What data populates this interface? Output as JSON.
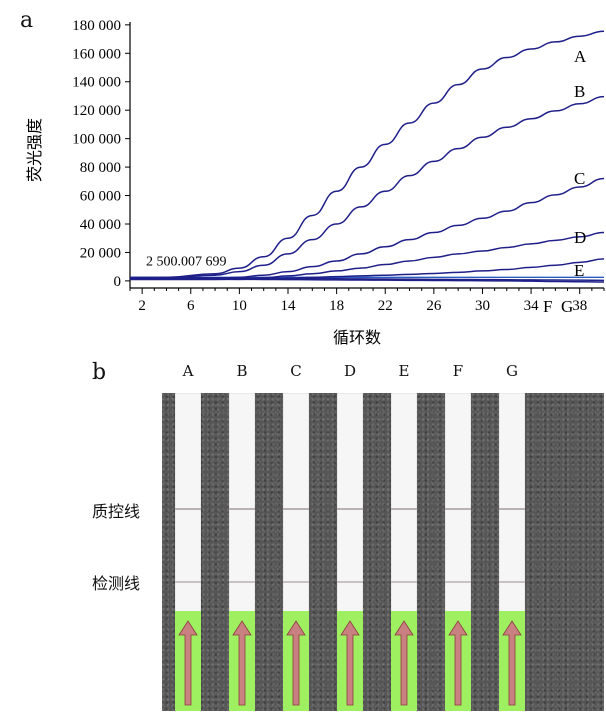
{
  "panel_a_label": "a",
  "panel_b_label": "b",
  "row_labels": {
    "control_line": "质控线",
    "test_line": "检测线"
  },
  "strip_columns": [
    "A",
    "B",
    "C",
    "D",
    "E",
    "F",
    "G"
  ],
  "colors": {
    "curve": "#1f1f8a",
    "threshold": "#2a5bbf",
    "strip_pad": "#9ef061",
    "arrow": "#c98080"
  },
  "chart_data": {
    "type": "line",
    "xlabel": "循环数",
    "ylabel": "荧光强度",
    "xlim": [
      1,
      40
    ],
    "ylim": [
      -5000,
      182000
    ],
    "x_ticks": [
      2,
      6,
      10,
      14,
      18,
      22,
      26,
      30,
      34,
      38
    ],
    "y_ticks": [
      0,
      20000,
      40000,
      60000,
      80000,
      100000,
      120000,
      140000,
      160000,
      180000
    ],
    "y_tick_labels": [
      "0",
      "20 000",
      "40 000",
      "60 000",
      "80 000",
      "100 000",
      "120 000",
      "140 000",
      "160 000",
      "180 000"
    ],
    "threshold": {
      "label": "2 500.007 699",
      "value": 2500
    },
    "x": [
      1,
      4,
      8,
      10,
      12,
      14,
      16,
      18,
      20,
      22,
      24,
      26,
      28,
      30,
      32,
      34,
      36,
      38,
      40
    ],
    "series": [
      {
        "name": "A",
        "values": [
          2000,
          2500,
          5000,
          9000,
          17000,
          30000,
          46000,
          63000,
          80000,
          96000,
          111000,
          125000,
          138000,
          149000,
          157000,
          163000,
          168000,
          172000,
          175500
        ]
      },
      {
        "name": "B",
        "values": [
          2000,
          2300,
          4000,
          6500,
          11000,
          19000,
          29000,
          40000,
          52000,
          63000,
          74000,
          84000,
          93000,
          101000,
          108000,
          114000,
          119500,
          124500,
          129500
        ]
      },
      {
        "name": "C",
        "values": [
          1500,
          1600,
          1800,
          2500,
          4000,
          6500,
          10000,
          14000,
          19000,
          24000,
          29000,
          34000,
          39000,
          44000,
          49000,
          55000,
          60500,
          66000,
          72000
        ]
      },
      {
        "name": "D",
        "values": [
          1200,
          1200,
          1300,
          1500,
          2200,
          3500,
          5000,
          7000,
          9000,
          11500,
          14000,
          16500,
          19000,
          21000,
          23500,
          26000,
          28500,
          31000,
          34000
        ]
      },
      {
        "name": "E",
        "values": [
          1000,
          1000,
          1000,
          1100,
          1400,
          1900,
          2500,
          3000,
          3500,
          4000,
          4600,
          5200,
          6000,
          7000,
          8000,
          9500,
          11000,
          13000,
          15500
        ]
      },
      {
        "name": "F",
        "values": [
          1500,
          1400,
          1200,
          1100,
          1000,
          900,
          800,
          700,
          600,
          500,
          400,
          300,
          200,
          100,
          0,
          -200,
          -400,
          -600,
          -800
        ]
      },
      {
        "name": "G",
        "values": [
          2500,
          2400,
          2200,
          2000,
          1800,
          1700,
          1600,
          1500,
          1400,
          1300,
          1200,
          1100,
          1000,
          900,
          800,
          700,
          600,
          500,
          400
        ]
      }
    ]
  }
}
